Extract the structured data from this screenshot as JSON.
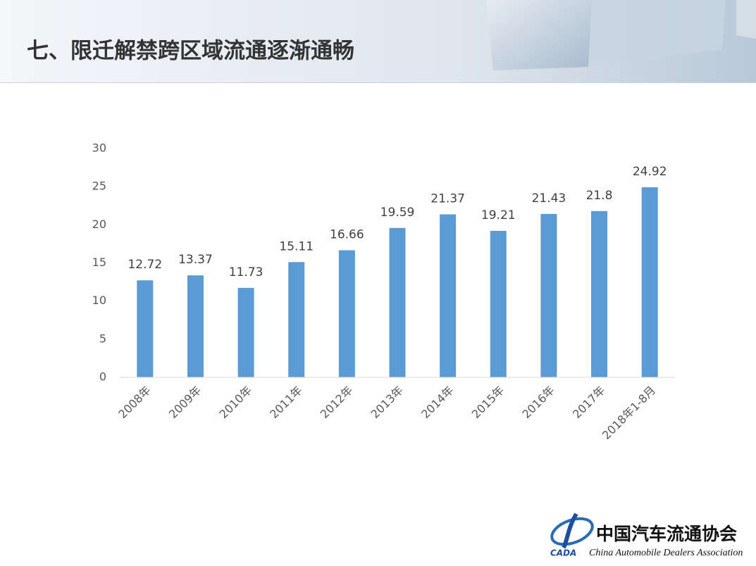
{
  "header": {
    "title": "七、限迁解禁跨区域流通逐渐通畅"
  },
  "chart_data": {
    "type": "bar",
    "categories": [
      "2008年",
      "2009年",
      "2010年",
      "2011年",
      "2012年",
      "2013年",
      "2014年",
      "2015年",
      "2016年",
      "2017年",
      "2018年1-8月"
    ],
    "values": [
      12.72,
      13.37,
      11.73,
      15.11,
      16.66,
      19.59,
      21.37,
      19.21,
      21.43,
      21.8,
      24.92
    ],
    "color": "#5b9bd5",
    "ylim": [
      0,
      30
    ],
    "yticks": [
      0,
      5,
      10,
      15,
      20,
      25,
      30
    ],
    "grid": false
  },
  "logo": {
    "name": "中国汽车流通协会",
    "english": "China Automobile Dealers Association",
    "abbr": "CADA"
  }
}
